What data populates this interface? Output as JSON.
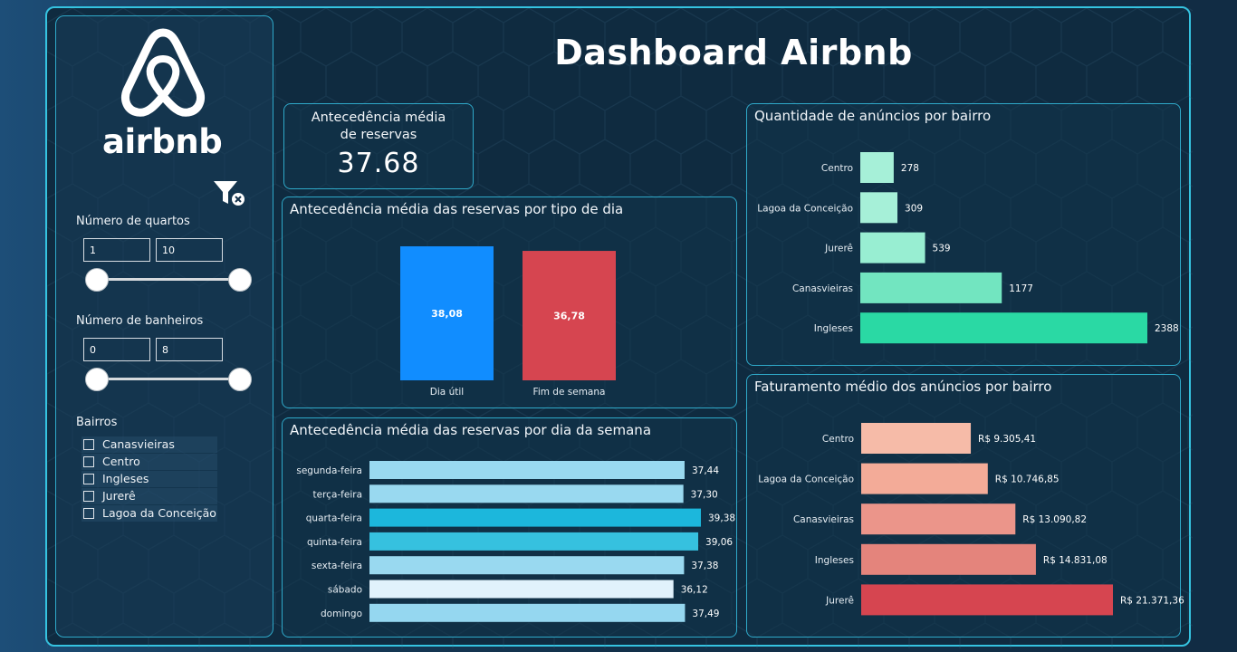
{
  "header": {
    "title": "Dashboard Airbnb"
  },
  "logo": {
    "text": "airbnb"
  },
  "sidebar": {
    "quartos": {
      "label": "Número de quartos",
      "min": "1",
      "max": "10"
    },
    "banheiros": {
      "label": "Número de banheiros",
      "min": "0",
      "max": "8"
    },
    "bairros": {
      "label": "Bairros",
      "items": [
        "Canasvieiras",
        "Centro",
        "Ingleses",
        "Jurerê",
        "Lagoa da Conceição"
      ]
    }
  },
  "kpi": {
    "label_line1": "Antecedência média",
    "label_line2": "de reservas",
    "value": "37.68"
  },
  "colors": {
    "accent": "#35c3e0",
    "day_util": "#118dff",
    "weekend": "#d64550"
  },
  "chart_data": [
    {
      "id": "tipo_dia",
      "type": "bar",
      "title": "Antecedência média das reservas por tipo de dia",
      "categories": [
        "Dia útil",
        "Fim de semana"
      ],
      "values": [
        38.08,
        36.78
      ],
      "labels": [
        "38,08",
        "36,78"
      ],
      "colors": [
        "#118dff",
        "#d64550"
      ]
    },
    {
      "id": "dia_semana",
      "type": "bar",
      "orientation": "horizontal",
      "title": "Antecedência média das reservas por dia da semana",
      "categories": [
        "segunda-feira",
        "terça-feira",
        "quarta-feira",
        "quinta-feira",
        "sexta-feira",
        "sábado",
        "domingo"
      ],
      "values": [
        37.44,
        37.3,
        39.38,
        39.06,
        37.38,
        36.12,
        37.49
      ],
      "labels": [
        "37,44",
        "37,30",
        "39,38",
        "39,06",
        "37,38",
        "36,12",
        "37,49"
      ],
      "colors": [
        "#99d9f0",
        "#99d9f0",
        "#1cb7dc",
        "#36c1df",
        "#99d9f0",
        "#e1f2fc",
        "#95d7f0"
      ]
    },
    {
      "id": "anuncios_bairro",
      "type": "bar",
      "orientation": "horizontal",
      "title": "Quantidade de anúncios por bairro",
      "categories": [
        "Centro",
        "Lagoa da Conceição",
        "Jurerê",
        "Canasvieiras",
        "Ingleses"
      ],
      "values": [
        278,
        309,
        539,
        1177,
        2388
      ],
      "labels": [
        "278",
        "309",
        "539",
        "1177",
        "2388"
      ],
      "colors": [
        "#a6f0d8",
        "#a6f0d8",
        "#98eed2",
        "#72e5c0",
        "#2ad9a4"
      ]
    },
    {
      "id": "faturamento_bairro",
      "type": "bar",
      "orientation": "horizontal",
      "title": "Faturamento médio dos anúncios por bairro",
      "categories": [
        "Centro",
        "Lagoa da Conceição",
        "Canasvieiras",
        "Ingleses",
        "Jurerê"
      ],
      "values": [
        9305.41,
        10746.85,
        13090.82,
        14831.08,
        21371.36
      ],
      "labels": [
        "R$ 9.305,41",
        "R$ 10.746,85",
        "R$ 13.090,82",
        "R$ 14.831,08",
        "R$ 21.371,36"
      ],
      "colors": [
        "#f6bba8",
        "#f3ab98",
        "#eb958a",
        "#e4847c",
        "#d64550"
      ]
    }
  ]
}
